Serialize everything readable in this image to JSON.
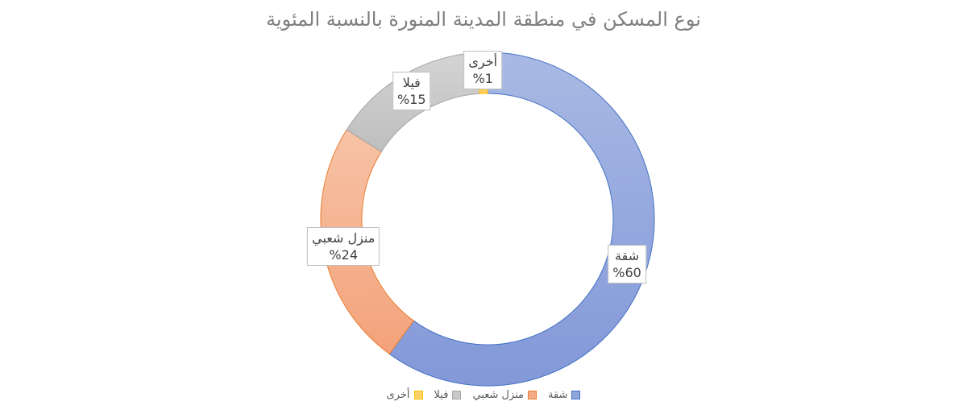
{
  "chart_data": {
    "type": "pie",
    "title": "نوع المسكن في منطقة المدينة المنورة بالنسبة المئوية",
    "categories": [
      "شقة",
      "منزل شعبي",
      "فيلا",
      "أخرى"
    ],
    "values": [
      60,
      24,
      15,
      1
    ],
    "value_labels": [
      "%60",
      "%24",
      "%15",
      "%1"
    ],
    "colors": [
      "#8FA6DC",
      "#F4AC87",
      "#C9C9C9",
      "#FFD36A"
    ],
    "stroke_colors": [
      "#4472C4",
      "#ED7D31",
      "#A5A5A5",
      "#FFC000"
    ],
    "legend_position": "bottom"
  }
}
